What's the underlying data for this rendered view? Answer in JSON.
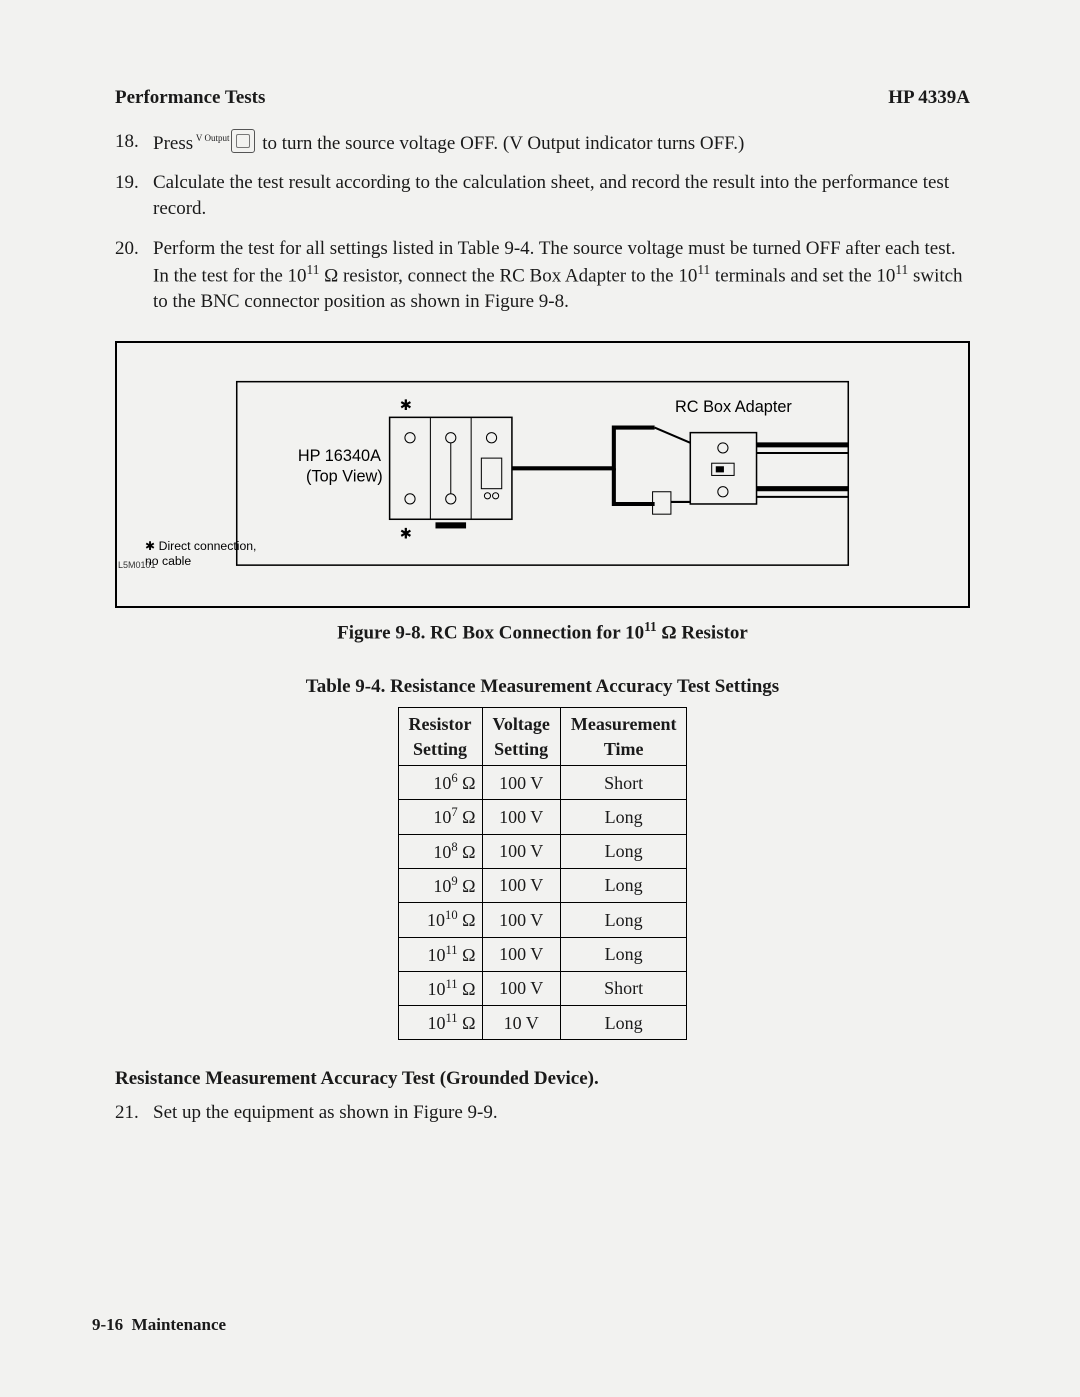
{
  "header": {
    "left": "Performance Tests",
    "right": "HP 4339A"
  },
  "steps": {
    "s18": {
      "num": "18.",
      "pre": "Press",
      "keylabel": "V Output",
      "post": " to turn the source voltage OFF. (V Output indicator turns OFF.)"
    },
    "s19": {
      "num": "19.",
      "text": "Calculate the test result according to the calculation sheet, and record the result into the performance test record."
    },
    "s20": {
      "num": "20.",
      "text_a": "Perform the test for all settings listed in Table 9-4. The source voltage must be turned OFF after each test. In the test for the 10",
      "exp1": "11",
      "text_b": " Ω resistor, connect the RC Box Adapter to the 10",
      "exp2": "11",
      "text_c": " terminals and set the 10",
      "exp3": "11",
      "text_d": " switch to the BNC connector position as shown in Figure 9-8."
    }
  },
  "figure": {
    "code": "L5M0101",
    "label_left_a": "HP 16340A",
    "label_left_b": "(Top View)",
    "label_right": "RC Box Adapter",
    "note_a": "✱  Direct connection,",
    "note_b": "    no cable",
    "asterisk": "✱",
    "caption_a": "Figure 9-8. RC Box Connection for 10",
    "caption_exp": "11",
    "caption_b": " Ω Resistor"
  },
  "table": {
    "caption": "Table 9-4. Resistance Measurement Accuracy Test Settings",
    "columns": [
      "Resistor Setting",
      "Voltage Setting",
      "Measurement Time"
    ],
    "rows": [
      {
        "r_base": "10",
        "r_exp": "6",
        "r_unit": " Ω",
        "v": "100 V",
        "t": "Short"
      },
      {
        "r_base": "10",
        "r_exp": "7",
        "r_unit": " Ω",
        "v": "100 V",
        "t": "Long"
      },
      {
        "r_base": "10",
        "r_exp": "8",
        "r_unit": " Ω",
        "v": "100 V",
        "t": "Long"
      },
      {
        "r_base": "10",
        "r_exp": "9",
        "r_unit": " Ω",
        "v": "100 V",
        "t": "Long"
      },
      {
        "r_base": "10",
        "r_exp": "10",
        "r_unit": " Ω",
        "v": "100 V",
        "t": "Long"
      },
      {
        "r_base": "10",
        "r_exp": "11",
        "r_unit": " Ω",
        "v": "100 V",
        "t": "Long"
      },
      {
        "r_base": "10",
        "r_exp": "11",
        "r_unit": " Ω",
        "v": "100 V",
        "t": "Short"
      },
      {
        "r_base": "10",
        "r_exp": "11",
        "r_unit": " Ω",
        "v": "10 V",
        "t": "Long"
      }
    ]
  },
  "section2": {
    "heading": "Resistance Measurement Accuracy Test (Grounded Device).",
    "step21_num": "21.",
    "step21_text": "Set up the equipment as shown in Figure 9-9."
  },
  "footer": {
    "pg": "9-16",
    "label": "Maintenance"
  }
}
